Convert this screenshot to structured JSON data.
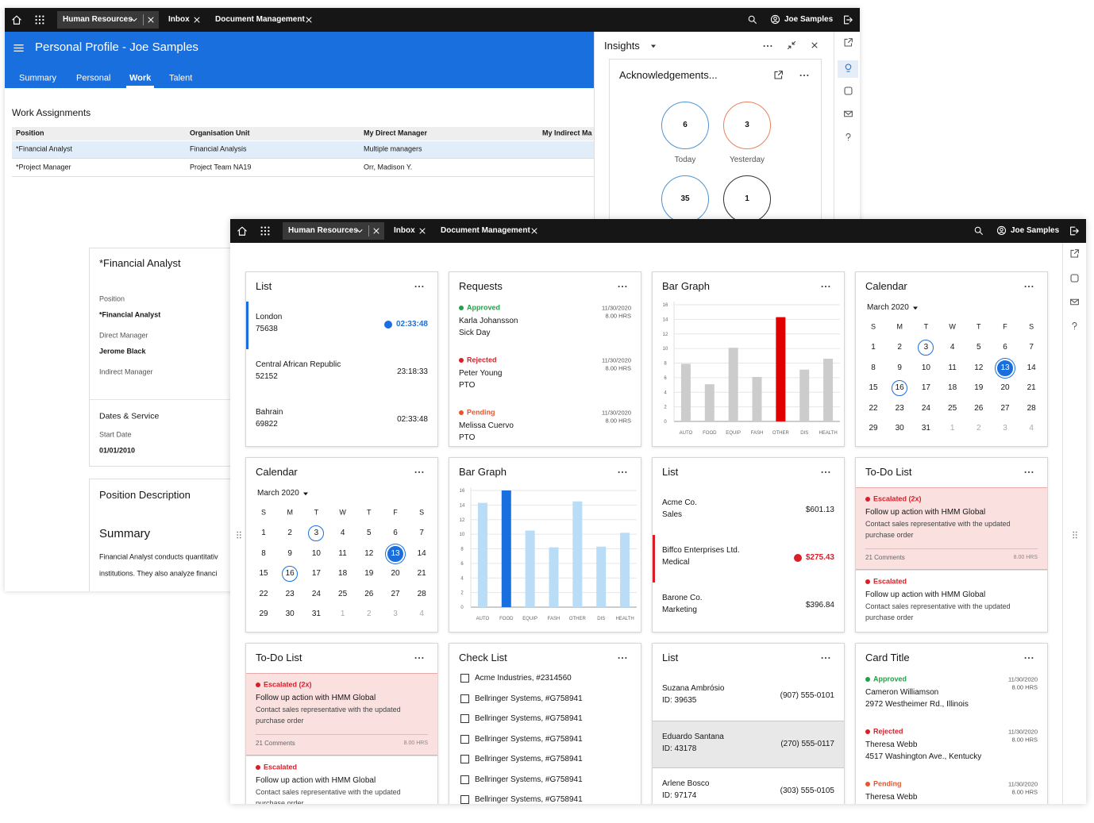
{
  "back": {
    "top_bar": {
      "tabs": [
        "Human Resources",
        "Inbox",
        "Document Management"
      ],
      "user": "Joe Samples"
    },
    "header": {
      "title": "Personal Profile - Joe Samples",
      "tabs": [
        "Summary",
        "Personal",
        "Work",
        "Talent"
      ],
      "active_tab": 2
    },
    "work_assignments": {
      "title": "Work Assignments",
      "columns": [
        "Position",
        "Organisation Unit",
        "My Direct Manager",
        "My Indirect Ma"
      ],
      "rows": [
        [
          "*Financial Analyst",
          "Financial Analysis",
          "Multiple managers"
        ],
        [
          "*Project Manager",
          "Project Team NA19",
          "Orr, Madison Y."
        ]
      ],
      "selected_row": 0
    },
    "insights": {
      "title": "Insights",
      "card_title": "Acknowledgements...",
      "counts": [
        {
          "value": 6,
          "label": "Today",
          "color": "#4f94d4"
        },
        {
          "value": 3,
          "label": "Yesterday",
          "color": "#e8825f"
        },
        {
          "value": 35,
          "color": "#4f94d4"
        },
        {
          "value": 1,
          "color": "#333333"
        }
      ]
    },
    "profile": {
      "title": "*Financial Analyst",
      "fields": [
        {
          "label": "Position",
          "value": "*Financial Analyst"
        },
        {
          "label": "Direct Manager",
          "value": "Jerome Black"
        },
        {
          "label": "Indirect Manager"
        }
      ],
      "section": "Dates & Service",
      "section_fields": [
        {
          "label": "Start Date",
          "value": "01/01/2010"
        }
      ]
    },
    "description": {
      "title": "Position Description",
      "heading": "Summary",
      "lines": [
        "Financial Analyst conducts quantitativ",
        "institutions. They also analyze financi"
      ]
    }
  },
  "front": {
    "top_bar": {
      "tabs": [
        "Human Resources",
        "Inbox",
        "Document Management"
      ],
      "user": "Joe Samples"
    },
    "cards": [
      {
        "kind": "list",
        "title": "List",
        "items": [
          {
            "title": "London",
            "subtitle": "75638",
            "value": "02:33:48",
            "state": "active"
          },
          {
            "title": "Central African Republic",
            "subtitle": "52152",
            "value": "23:18:33"
          },
          {
            "title": "Bahrain",
            "subtitle": "69822",
            "value": "02:33:48"
          }
        ]
      },
      {
        "kind": "requests",
        "title": "Requests",
        "items": [
          {
            "status": "Approved",
            "color": "#24a148",
            "name": "Karla Johansson",
            "detail": "Sick Day",
            "date": "11/30/2020",
            "hours": "8.00 HRS"
          },
          {
            "status": "Rejected",
            "color": "#da1e28",
            "name": "Peter Young",
            "detail": "PTO",
            "date": "11/30/2020",
            "hours": "8.00 HRS"
          },
          {
            "status": "Pending",
            "color": "#e8552d",
            "name": "Melissa Cuervo",
            "detail": "PTO",
            "date": "11/30/2020",
            "hours": "8.00 HRS"
          }
        ]
      },
      {
        "kind": "bar",
        "title": "Bar Graph",
        "categories": [
          "AUTO",
          "FOOD",
          "EQUIP",
          "FASH",
          "OTHER",
          "DIS",
          "HEALTH"
        ],
        "values": [
          7.9,
          5.1,
          10.1,
          6.1,
          14.3,
          7.1,
          8.6
        ],
        "colors": [
          "#cccccc",
          "#cccccc",
          "#cccccc",
          "#cccccc",
          "#e00000",
          "#cccccc",
          "#cccccc"
        ],
        "ylim": [
          0,
          16
        ],
        "yticks": [
          0,
          2,
          4,
          6,
          8,
          10,
          12,
          14,
          16
        ]
      },
      {
        "kind": "calendar",
        "title": "Calendar",
        "month": "March 2020",
        "weekdays": [
          "S",
          "M",
          "T",
          "W",
          "T",
          "F",
          "S"
        ],
        "weeks": [
          [
            1,
            2,
            3,
            4,
            5,
            6,
            7
          ],
          [
            8,
            9,
            10,
            11,
            12,
            13,
            14
          ],
          [
            15,
            16,
            17,
            18,
            19,
            20,
            21
          ],
          [
            22,
            23,
            24,
            25,
            26,
            27,
            28
          ],
          [
            29,
            30,
            31
          ]
        ],
        "next_month_days": [
          1,
          2,
          3,
          4
        ],
        "selected": 13,
        "circled": [
          3,
          16
        ]
      },
      {
        "kind": "calendar",
        "title": "Calendar",
        "month": "March 2020",
        "weekdays": [
          "S",
          "M",
          "T",
          "W",
          "T",
          "F",
          "S"
        ],
        "weeks": [
          [
            1,
            2,
            3,
            4,
            5,
            6,
            7
          ],
          [
            8,
            9,
            10,
            11,
            12,
            13,
            14
          ],
          [
            15,
            16,
            17,
            18,
            19,
            20,
            21
          ],
          [
            22,
            23,
            24,
            25,
            26,
            27,
            28
          ],
          [
            29,
            30,
            31
          ]
        ],
        "next_month_days": [
          1,
          2,
          3,
          4
        ],
        "selected": 13,
        "circled": [
          3,
          16
        ]
      },
      {
        "kind": "bar",
        "title": "Bar Graph",
        "categories": [
          "AUTO",
          "FOOD",
          "EQUIP",
          "FASH",
          "OTHER",
          "DIS",
          "HEALTH"
        ],
        "values": [
          14.3,
          16,
          10.5,
          8.2,
          14.5,
          8.3,
          10.2
        ],
        "colors": [
          "#b9dcf7",
          "#1a6fdf",
          "#b9dcf7",
          "#b9dcf7",
          "#b9dcf7",
          "#b9dcf7",
          "#b9dcf7"
        ],
        "ylim": [
          0,
          16
        ],
        "yticks": [
          0,
          2,
          4,
          6,
          8,
          10,
          12,
          14,
          16
        ]
      },
      {
        "kind": "list",
        "title": "List",
        "items": [
          {
            "title": "Acme Co.",
            "subtitle": "Sales",
            "value": "$601.13"
          },
          {
            "title": "Biffco Enterprises Ltd.",
            "subtitle": "Medical",
            "value": "$275.43",
            "state": "alert"
          },
          {
            "title": "Barone Co.",
            "subtitle": "Marketing",
            "value": "$396.84"
          }
        ]
      },
      {
        "kind": "todo",
        "title": "To-Do List",
        "items": [
          {
            "status": "Escalated (2x)",
            "title": "Follow up action with HMM Global",
            "body": "Contact sales representative with the updated purchase order",
            "comments": "21 Comments",
            "hours": "8.00 HRS",
            "state": "highlight"
          },
          {
            "status": "Escalated",
            "title": "Follow up action with HMM Global",
            "body": "Contact sales representative with the updated purchase order"
          }
        ]
      },
      {
        "kind": "todo",
        "title": "To-Do List",
        "items": [
          {
            "status": "Escalated (2x)",
            "title": "Follow up action with HMM Global",
            "body": "Contact sales representative with the updated purchase order",
            "comments": "21 Comments",
            "hours": "8.00 HRS",
            "state": "highlight"
          },
          {
            "status": "Escalated",
            "title": "Follow up action with HMM Global",
            "body": "Contact sales representative with the updated purchase order"
          }
        ]
      },
      {
        "kind": "checklist",
        "title": "Check List",
        "items": [
          "Acme Industries, #2314560",
          "Bellringer Systems, #G758941",
          "Bellringer Systems, #G758941",
          "Bellringer Systems, #G758941",
          "Bellringer Systems, #G758941",
          "Bellringer Systems, #G758941",
          "Bellringer Systems, #G758941"
        ]
      },
      {
        "kind": "list",
        "title": "List",
        "items": [
          {
            "title": "Suzana Ambrósio",
            "subtitle": "ID: 39635",
            "value": "(907) 555-0101"
          },
          {
            "title": "Eduardo Santana",
            "subtitle": "ID: 43178",
            "value": "(270) 555-0117",
            "state": "selected"
          },
          {
            "title": "Arlene Bosco",
            "subtitle": "ID: 97174",
            "value": "(303) 555-0105"
          }
        ]
      },
      {
        "kind": "requests",
        "title": "Card Title",
        "items": [
          {
            "status": "Approved",
            "color": "#24a148",
            "name": "Cameron Williamson",
            "detail": "2972 Westheimer Rd., Illinois",
            "date": "11/30/2020",
            "hours": "8.00 HRS"
          },
          {
            "status": "Rejected",
            "color": "#da1e28",
            "name": "Theresa Webb",
            "detail": "4517 Washington Ave., Kentucky",
            "date": "11/30/2020",
            "hours": "8.00 HRS"
          },
          {
            "status": "Pending",
            "color": "#e8552d",
            "name": "Theresa Webb",
            "date": "11/30/2020",
            "hours": "8.00 HRS"
          }
        ]
      }
    ]
  }
}
